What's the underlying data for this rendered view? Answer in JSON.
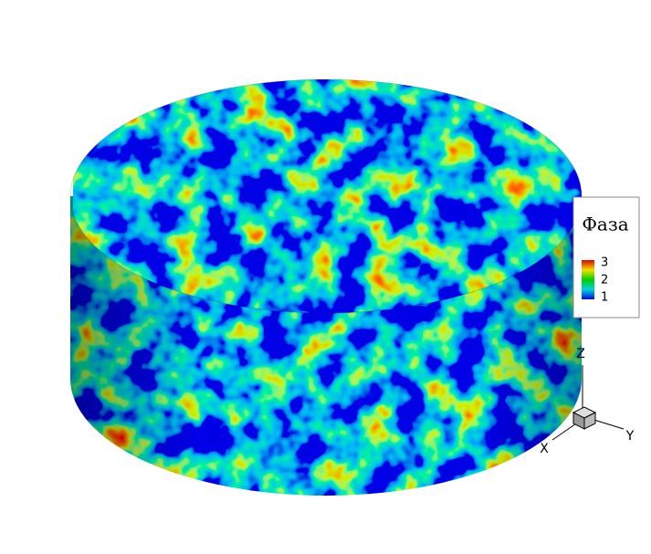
{
  "legend": {
    "title": "Фаза",
    "ticks": [
      3,
      2,
      1
    ]
  },
  "axes": {
    "x": "X",
    "y": "Y",
    "z": "Z"
  }
}
